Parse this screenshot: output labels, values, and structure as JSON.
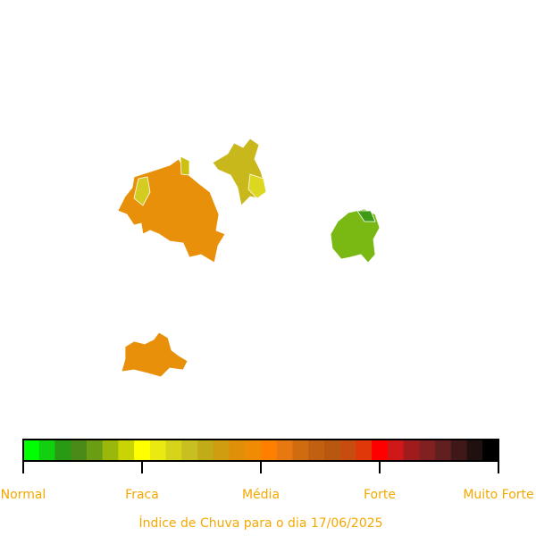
{
  "legend": {
    "colors": [
      "#00ff00",
      "#10d010",
      "#289a14",
      "#4a8a18",
      "#6a9c14",
      "#9ab80c",
      "#c8d404",
      "#ffff00",
      "#eaea10",
      "#d6d41a",
      "#c8c020",
      "#c0ac18",
      "#d09c10",
      "#e09008",
      "#f08c04",
      "#ff8000",
      "#e87810",
      "#d06c10",
      "#c06010",
      "#b85810",
      "#c84c10",
      "#e03808",
      "#ff0000",
      "#d01818",
      "#a01c1c",
      "#802020",
      "#602020",
      "#401818",
      "#201010",
      "#000000"
    ],
    "labels": [
      "Normal",
      "Fraca",
      "Média",
      "Forte",
      "Muito Forte"
    ]
  },
  "caption": "Índice de Chuva para o dia 17/06/2025"
}
